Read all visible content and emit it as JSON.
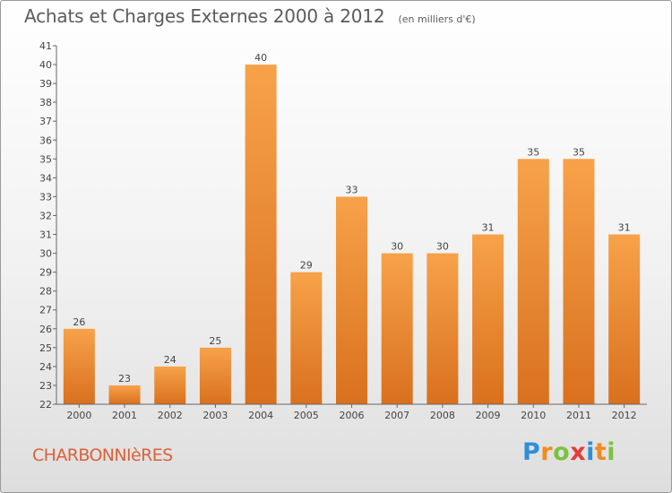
{
  "title": "Achats et Charges Externes 2000 à 2012",
  "subtitle": "(en milliers d'€)",
  "town": "CHARBONNIèRES",
  "logo": {
    "letters": [
      "P",
      "r",
      "o",
      "x",
      "i",
      "t",
      "i"
    ],
    "colors": [
      "#2f8fd8",
      "#f28a1e",
      "#7cc242",
      "#e53a3a",
      "#2f8fd8",
      "#f28a1e",
      "#7cc242"
    ]
  },
  "colors": {
    "bar_light": "#f7a24a",
    "bar_dark": "#d9701e",
    "text": "#444444",
    "title": "#5b5b5b",
    "town": "#d9623a"
  },
  "chart_data": {
    "type": "bar",
    "categories": [
      "2000",
      "2001",
      "2002",
      "2003",
      "2004",
      "2005",
      "2006",
      "2007",
      "2008",
      "2009",
      "2010",
      "2011",
      "2012"
    ],
    "values": [
      26,
      23,
      24,
      25,
      40,
      29,
      33,
      30,
      30,
      31,
      35,
      35,
      31
    ],
    "title": "Achats et Charges Externes 2000 à 2012",
    "subtitle": "(en milliers d'€)",
    "xlabel": "",
    "ylabel": "",
    "ylim": [
      22,
      41
    ],
    "yticks": [
      22,
      23,
      24,
      25,
      26,
      27,
      28,
      29,
      30,
      31,
      32,
      33,
      34,
      35,
      36,
      37,
      38,
      39,
      40,
      41
    ],
    "grid": false,
    "legend": "none"
  }
}
